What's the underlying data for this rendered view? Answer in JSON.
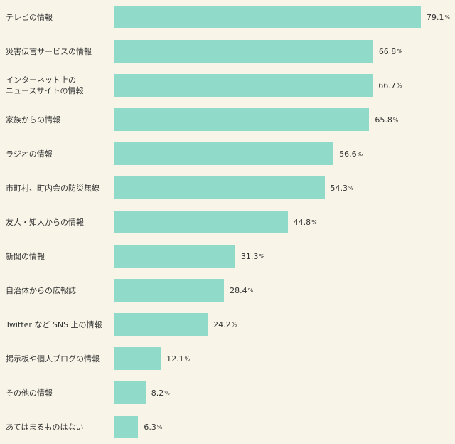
{
  "chart_data": {
    "type": "bar",
    "orientation": "horizontal",
    "title": "",
    "xlabel": "",
    "ylabel": "",
    "unit": "%",
    "xlim": [
      0,
      100
    ],
    "grid": false,
    "legend": "none",
    "bar_color": "#8fdac8",
    "background_color": "#f8f5e8",
    "categories": [
      "テレビの情報",
      "災害伝言サービスの情報",
      "インターネット上の\nニュースサイトの情報",
      "家族からの情報",
      "ラジオの情報",
      "市町村、町内会の防災無線",
      "友人・知人からの情報",
      "新聞の情報",
      "自治体からの広報誌",
      "Twitter など SNS 上の情報",
      "掲示板や個人ブログの情報",
      "その他の情報",
      "あてはまるものはない"
    ],
    "values": [
      79.1,
      66.8,
      66.7,
      65.8,
      56.6,
      54.3,
      44.8,
      31.3,
      28.4,
      24.2,
      12.1,
      8.2,
      6.3
    ],
    "value_labels": [
      "79.1",
      "66.8",
      "66.7",
      "65.8",
      "56.6",
      "54.3",
      "44.8",
      "31.3",
      "28.4",
      "24.2",
      "12.1",
      "8.2",
      "6.3"
    ]
  }
}
